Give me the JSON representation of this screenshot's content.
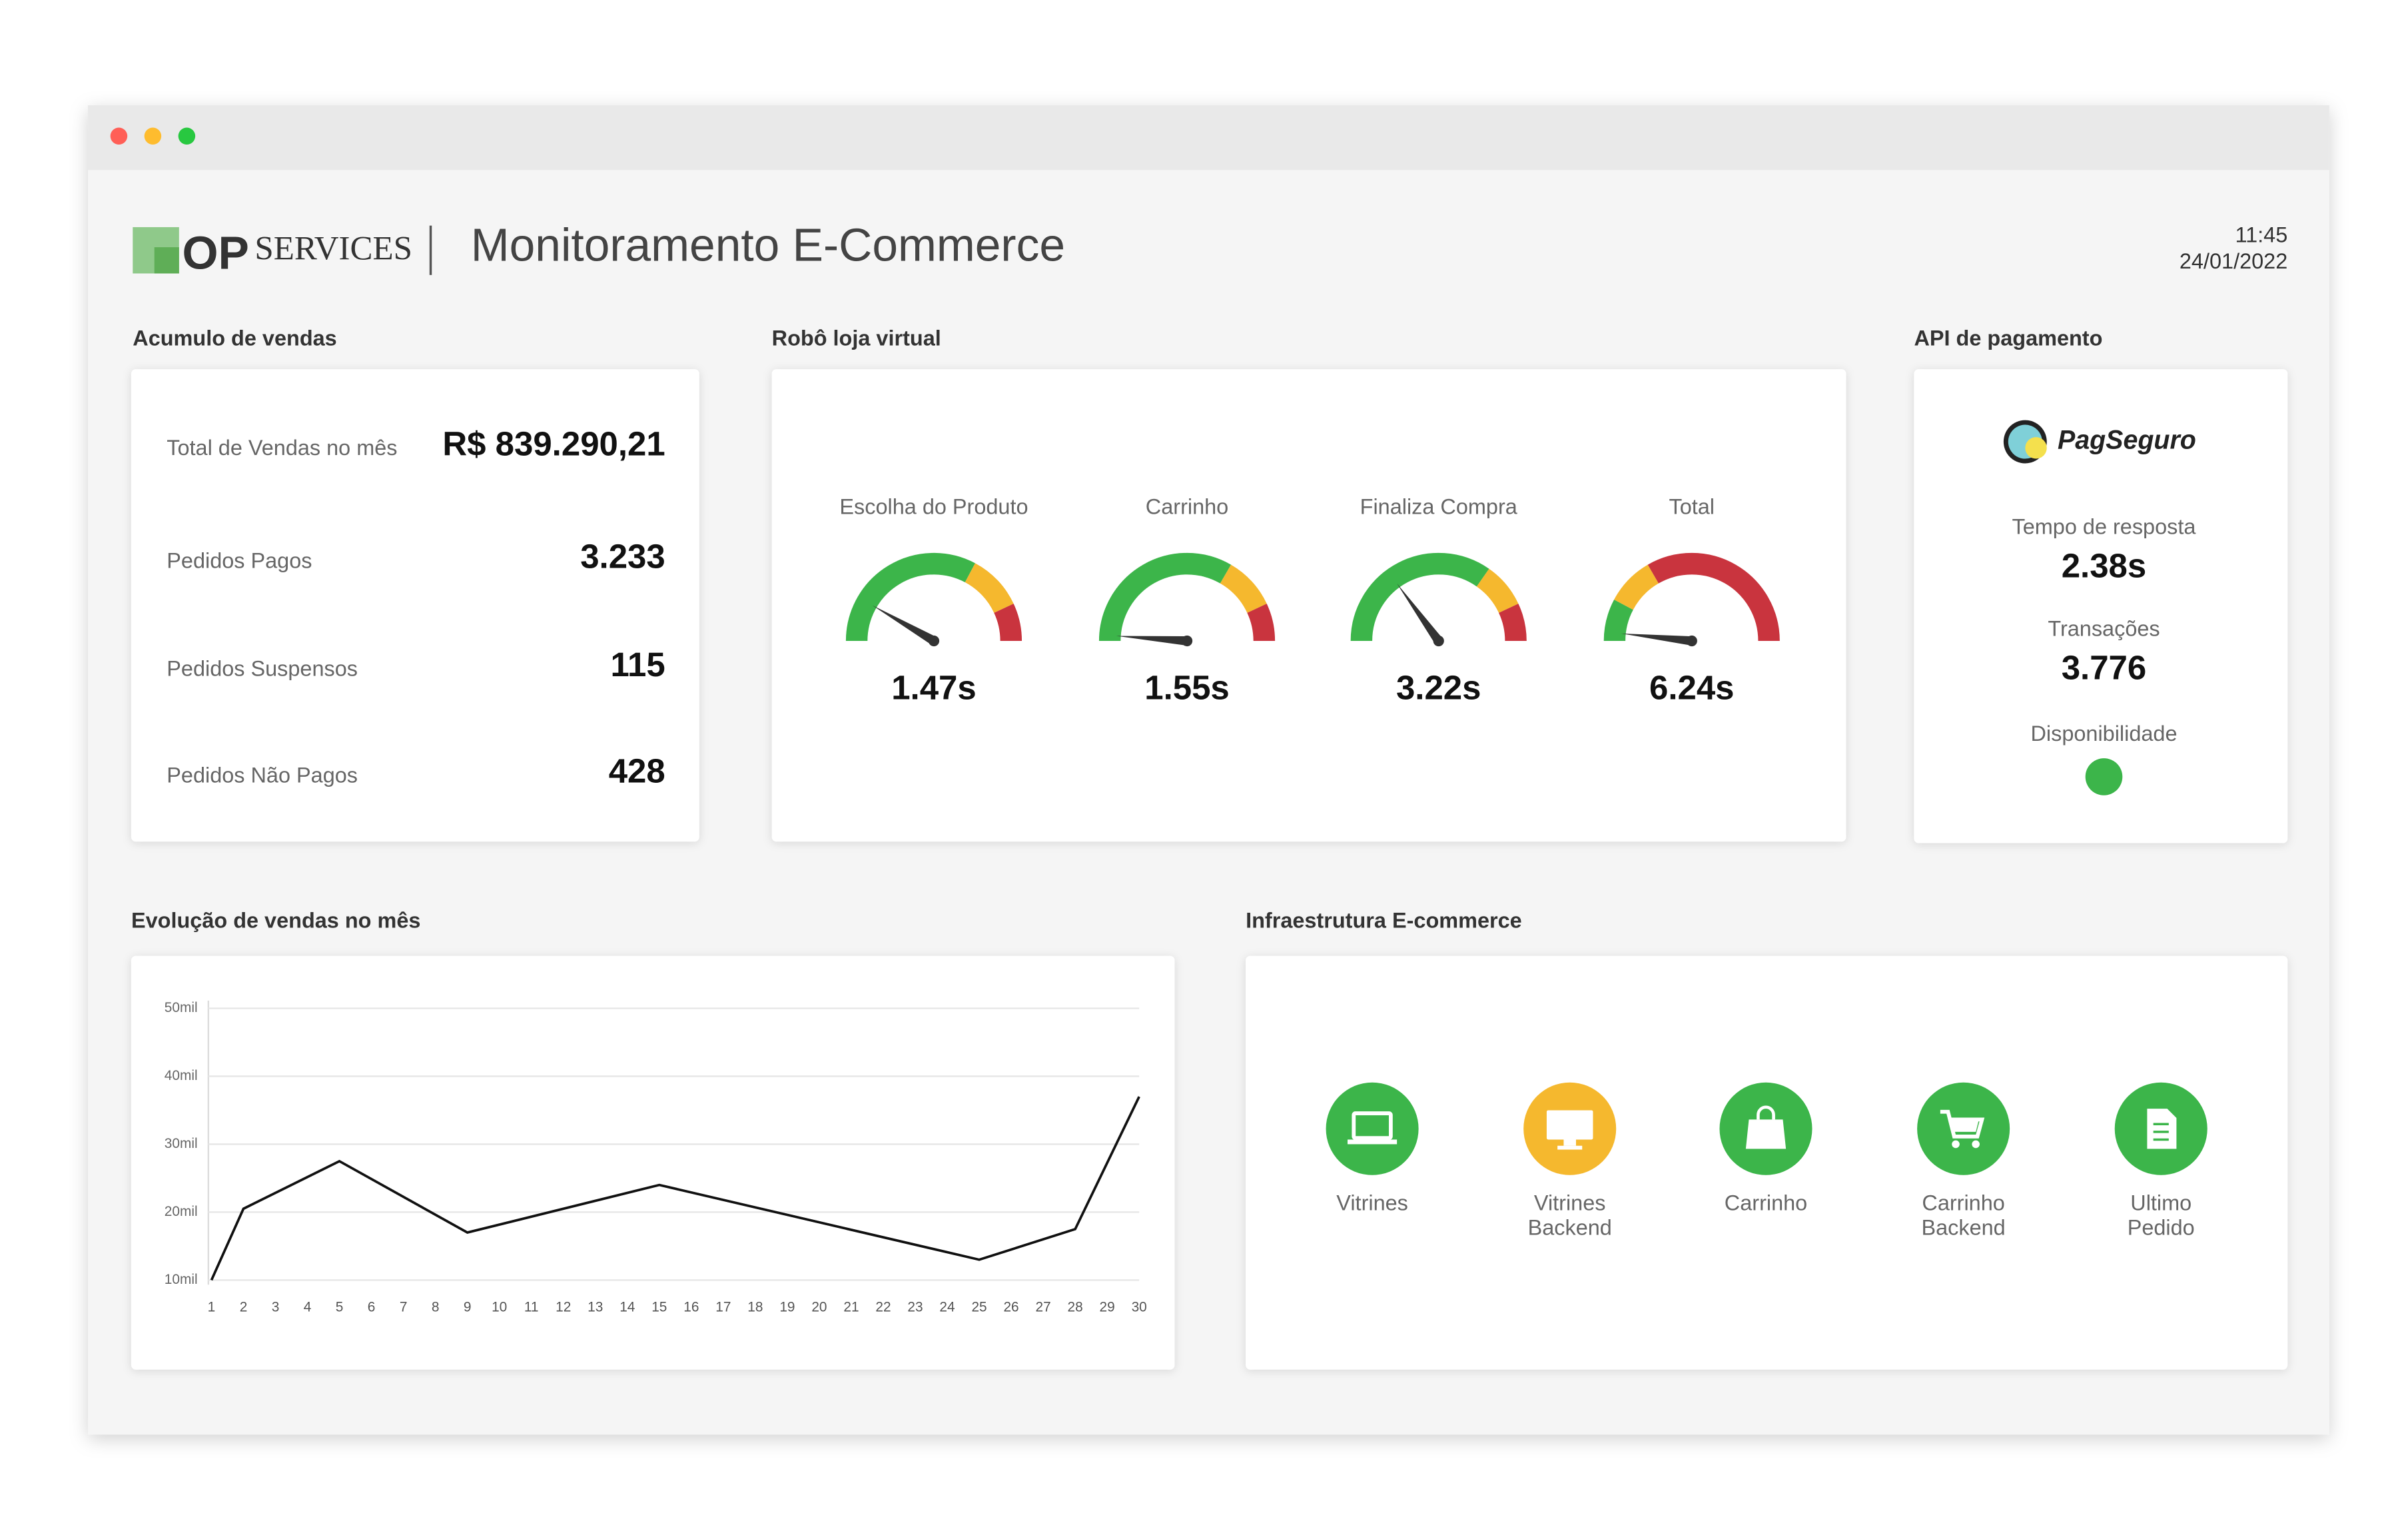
{
  "header": {
    "title": "Monitoramento E-Commerce",
    "logo": {
      "op": "OP",
      "services": "SERVICES"
    },
    "time": "11:45",
    "date": "24/01/2022"
  },
  "sales": {
    "title": "Acumulo de vendas",
    "rows": [
      {
        "label": "Total de Vendas no mês",
        "value": "R$ 839.290,21"
      },
      {
        "label": "Pedidos Pagos",
        "value": "3.233"
      },
      {
        "label": "Pedidos Suspensos",
        "value": "115"
      },
      {
        "label": "Pedidos Não Pagos",
        "value": "428"
      }
    ]
  },
  "robot": {
    "title": "Robô loja virtual",
    "gauges": [
      {
        "label": "Escolha do Produto",
        "value": "1.47s"
      },
      {
        "label": "Carrinho",
        "value": "1.55s"
      },
      {
        "label": "Finaliza Compra",
        "value": "3.22s"
      },
      {
        "label": "Total",
        "value": "6.24s"
      }
    ]
  },
  "api": {
    "title": "API de pagamento",
    "brand": "PagSeguro",
    "items": [
      {
        "label": "Tempo de resposta",
        "value": "2.38s"
      },
      {
        "label": "Transações",
        "value": "3.776"
      }
    ],
    "availability": "Disponibilidade"
  },
  "chart_data": {
    "type": "line",
    "title": "Evolução de vendas no mês",
    "x": [
      1,
      2,
      5,
      9,
      15,
      25,
      28,
      30
    ],
    "series": [
      {
        "name": null,
        "color": "#111111",
        "values": [
          10,
          20.5,
          27.5,
          17,
          24,
          13,
          17.5,
          37
        ]
      }
    ],
    "xlim": [
      1,
      30
    ],
    "xticks": [
      1,
      2,
      3,
      4,
      5,
      6,
      7,
      8,
      9,
      10,
      11,
      12,
      13,
      14,
      15,
      16,
      17,
      18,
      19,
      20,
      21,
      22,
      23,
      24,
      25,
      26,
      27,
      28,
      29,
      30
    ],
    "ylim": [
      10,
      50
    ],
    "yticks": [
      {
        "value": 10,
        "label": "10mil"
      },
      {
        "value": 20,
        "label": "20mil"
      },
      {
        "value": 30,
        "label": "30mil"
      },
      {
        "value": 40,
        "label": "40mil"
      },
      {
        "value": 50,
        "label": "50mil"
      }
    ],
    "grid": true
  },
  "infra": {
    "title": "Infraestrutura E-commerce",
    "items": [
      {
        "label": [
          "Vitrines"
        ],
        "color": "#3cb54a"
      },
      {
        "label": [
          "Vitrines",
          "Backend"
        ],
        "color": "#f5b82e"
      },
      {
        "label": [
          "Carrinho"
        ],
        "color": "#3cb54a"
      },
      {
        "label": [
          "Carrinho",
          "Backend"
        ],
        "color": "#3cb54a"
      },
      {
        "label": [
          "Ultimo",
          "Pedido"
        ],
        "color": "#3cb54a"
      }
    ]
  }
}
